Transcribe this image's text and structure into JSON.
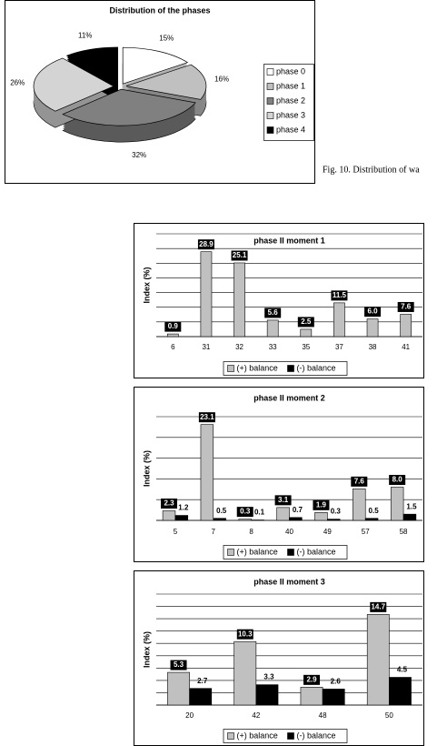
{
  "caption": "Fig. 10. Distribution of wa",
  "chart_data": [
    {
      "type": "pie",
      "title": "Distribution of the phases",
      "categories": [
        "phase 0",
        "phase 1",
        "phase 2",
        "phase 3",
        "phase 4"
      ],
      "values": [
        15,
        16,
        32,
        26,
        11
      ],
      "value_labels": [
        "15%",
        "16%",
        "32%",
        "26%",
        "11%"
      ],
      "colors": [
        "#ffffff",
        "#c0c0c0",
        "#808080",
        "#d4d4d4",
        "#000000"
      ],
      "legend": "right"
    },
    {
      "type": "bar",
      "title": "phase II moment 1",
      "ylabel": "Index (%)",
      "categories": [
        "6",
        "31",
        "32",
        "33",
        "35",
        "37",
        "38",
        "41"
      ],
      "series": [
        {
          "name": "(+) balance",
          "color": "#c0c0c0",
          "values": [
            0.9,
            28.9,
            25.1,
            5.6,
            2.5,
            11.5,
            6.0,
            7.6
          ],
          "value_labels": [
            "0.9",
            "28.9",
            "25.1",
            "5.6",
            "2.5",
            "11.5",
            "6.0",
            "7.6"
          ]
        },
        {
          "name": "(-) balance",
          "color": "#000000",
          "values": [
            null,
            null,
            null,
            null,
            null,
            null,
            null,
            null
          ]
        }
      ],
      "ylim": [
        0,
        35
      ],
      "yticks": [
        0,
        5,
        10,
        15,
        20,
        25,
        30,
        35
      ],
      "grid": true,
      "legend": "bottom"
    },
    {
      "type": "bar",
      "title": "phase II moment 2",
      "ylabel": "Index (%)",
      "categories": [
        "5",
        "7",
        "8",
        "40",
        "49",
        "57",
        "58"
      ],
      "series": [
        {
          "name": "(+) balance",
          "color": "#c0c0c0",
          "values": [
            2.3,
            23.1,
            0.3,
            3.1,
            1.9,
            7.6,
            8.0
          ],
          "value_labels": [
            "2.3",
            "23.1",
            "0.3",
            "3.1",
            "1.9",
            "7.6",
            "8.0"
          ]
        },
        {
          "name": "(-) balance",
          "color": "#000000",
          "values": [
            1.2,
            0.5,
            0.1,
            0.7,
            0.3,
            0.5,
            1.5
          ],
          "value_labels": [
            "1.2",
            "0.5",
            "0.1",
            "0.7",
            "0.3",
            "0.5",
            "1.5"
          ]
        }
      ],
      "ylim": [
        0,
        25
      ],
      "yticks": [
        0,
        5,
        10,
        15,
        20,
        25
      ],
      "grid": true,
      "legend": "bottom"
    },
    {
      "type": "bar",
      "title": "phase II moment 3",
      "ylabel": "Index (%)",
      "categories": [
        "20",
        "42",
        "48",
        "50"
      ],
      "series": [
        {
          "name": "(+) balance",
          "color": "#c0c0c0",
          "values": [
            5.3,
            10.3,
            2.9,
            14.7
          ],
          "value_labels": [
            "5.3",
            "10.3",
            "2.9",
            "14.7"
          ]
        },
        {
          "name": "(-) balance",
          "color": "#000000",
          "values": [
            2.7,
            3.3,
            2.6,
            4.5
          ],
          "value_labels": [
            "2.7",
            "3.3",
            "2.6",
            "4.5"
          ]
        }
      ],
      "ylim": [
        0,
        18
      ],
      "yticks": [
        0,
        2,
        4,
        6,
        8,
        10,
        12,
        14,
        16,
        18
      ],
      "grid": true,
      "legend": "bottom"
    }
  ]
}
